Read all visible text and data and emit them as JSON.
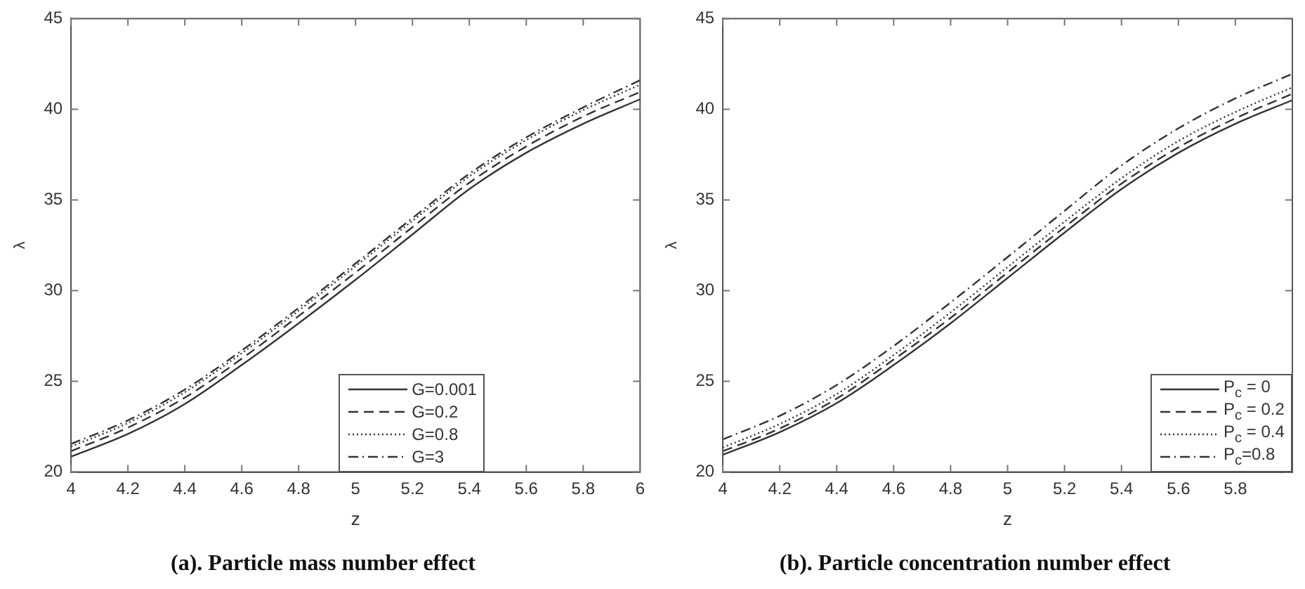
{
  "chart_data": [
    {
      "type": "line",
      "title": "(a). Particle mass number effect",
      "xlabel": "z",
      "ylabel": "λ",
      "x": [
        4,
        4.2,
        4.4,
        4.6,
        4.8,
        5,
        5.2,
        5.4,
        5.6,
        5.8,
        6
      ],
      "series": [
        {
          "name": "G=0.001",
          "color": "#333333",
          "line_style": "solid",
          "values": [
            20.85,
            22.1,
            23.75,
            25.9,
            28.2,
            30.6,
            33.1,
            35.6,
            37.6,
            39.2,
            40.55
          ]
        },
        {
          "name": "G=0.2",
          "color": "#333333",
          "line_style": "dashed",
          "values": [
            21.15,
            22.45,
            24.1,
            26.25,
            28.6,
            31.0,
            33.5,
            35.95,
            37.95,
            39.6,
            40.95
          ]
        },
        {
          "name": "G=0.8",
          "color": "#333333",
          "line_style": "dotted",
          "values": [
            21.4,
            22.7,
            24.4,
            26.55,
            28.9,
            31.35,
            33.85,
            36.3,
            38.3,
            39.95,
            41.35
          ]
        },
        {
          "name": "G=3",
          "color": "#333333",
          "line_style": "dashdot",
          "values": [
            21.55,
            22.85,
            24.55,
            26.7,
            29.05,
            31.5,
            34.0,
            36.45,
            38.45,
            40.1,
            41.6
          ]
        }
      ],
      "xlim": [
        4,
        6
      ],
      "xticks": [
        4,
        4.2,
        4.4,
        4.6,
        4.8,
        5,
        5.2,
        5.4,
        5.6,
        5.8,
        6
      ],
      "ylim": [
        20,
        45
      ],
      "yticks": [
        20,
        25,
        30,
        35,
        40,
        45
      ],
      "grid": false,
      "legend": "bottom",
      "marker": "none"
    },
    {
      "type": "line",
      "title": "(b). Particle concentration number effect",
      "xlabel": "z",
      "ylabel": "λ",
      "x": [
        4,
        4.2,
        4.4,
        4.6,
        4.8,
        5,
        5.2,
        5.4,
        5.6,
        5.8,
        6
      ],
      "series": [
        {
          "name": "P$_{c}$ = 0",
          "color": "#333333",
          "line_style": "solid",
          "values": [
            20.95,
            22.2,
            23.8,
            25.9,
            28.2,
            30.7,
            33.2,
            35.6,
            37.6,
            39.2,
            40.5
          ]
        },
        {
          "name": "P$_{c}$ = 0.2",
          "color": "#333333",
          "line_style": "dashed",
          "values": [
            21.15,
            22.4,
            24.05,
            26.2,
            28.5,
            31.0,
            33.5,
            35.9,
            37.9,
            39.5,
            40.85
          ]
        },
        {
          "name": "P$_{c}$ = 0.4",
          "color": "#333333",
          "line_style": "dotted",
          "values": [
            21.35,
            22.65,
            24.3,
            26.45,
            28.8,
            31.3,
            33.8,
            36.2,
            38.25,
            39.85,
            41.2
          ]
        },
        {
          "name": "P$_{c}$=0.8",
          "color": "#333333",
          "line_style": "dashdot",
          "values": [
            21.8,
            23.1,
            24.8,
            26.95,
            29.35,
            31.85,
            34.4,
            36.9,
            38.95,
            40.6,
            41.95
          ]
        }
      ],
      "xlim": [
        4,
        6
      ],
      "xticks": [
        4,
        4.2,
        4.4,
        4.6,
        4.8,
        5,
        5.2,
        5.4,
        5.6,
        5.8
      ],
      "ylim": [
        20,
        45
      ],
      "yticks": [
        20,
        25,
        30,
        35,
        40,
        45
      ],
      "grid": false,
      "legend": "bottom right",
      "marker": "none"
    }
  ]
}
